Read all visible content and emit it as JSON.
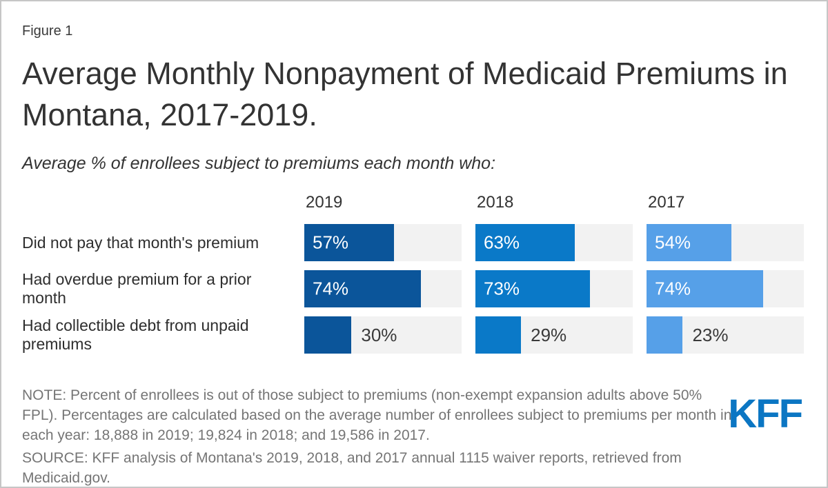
{
  "page": {
    "figure_label": "Figure 1",
    "title": "Average Monthly Nonpayment of Medicaid Premiums in Montana, 2017-2019.",
    "subtitle": "Average % of enrollees subject to premiums each month who:",
    "note": "NOTE: Percent of enrollees is out of those subject to premiums (non-exempt expansion adults above 50% FPL). Percentages are calculated based on the average number of enrollees subject to premiums per month in each year: 18,888 in 2019; 19,824 in 2018; and 19,586 in 2017.",
    "source": "SOURCE: KFF analysis of Montana's 2019, 2018, and 2017 annual 1115 waiver reports, retrieved from Medicaid.gov.",
    "logo_text": "KFF"
  },
  "colors": {
    "bar_2019": "#0B559A",
    "bar_2018": "#0A79C8",
    "bar_2017": "#56A0E8",
    "track_background": "#F2F2F2",
    "logo_blue": "#0B76C3",
    "note_gray": "#757575"
  },
  "chart_data": {
    "type": "bar",
    "orientation": "horizontal",
    "unit": "%",
    "xlim": [
      0,
      100
    ],
    "grid": false,
    "legend": false,
    "title": "Average Monthly Nonpayment of Medicaid Premiums in Montana, 2017-2019.",
    "subtitle": "Average % of enrollees subject to premiums each month who:",
    "categories": [
      "Did not pay that month's premium",
      "Had overdue premium for a prior month",
      "Had collectible debt from unpaid premiums"
    ],
    "value_label_placement_by_row": [
      "inside",
      "inside",
      "outside"
    ],
    "series": [
      {
        "year": "2019",
        "color": "#0B559A",
        "values": [
          57,
          74,
          30
        ],
        "labels": [
          "57%",
          "74%",
          "30%"
        ]
      },
      {
        "year": "2018",
        "color": "#0A79C8",
        "values": [
          63,
          73,
          29
        ],
        "labels": [
          "63%",
          "73%",
          "29%"
        ]
      },
      {
        "year": "2017",
        "color": "#56A0E8",
        "values": [
          54,
          74,
          23
        ],
        "labels": [
          "54%",
          "74%",
          "23%"
        ]
      }
    ]
  }
}
